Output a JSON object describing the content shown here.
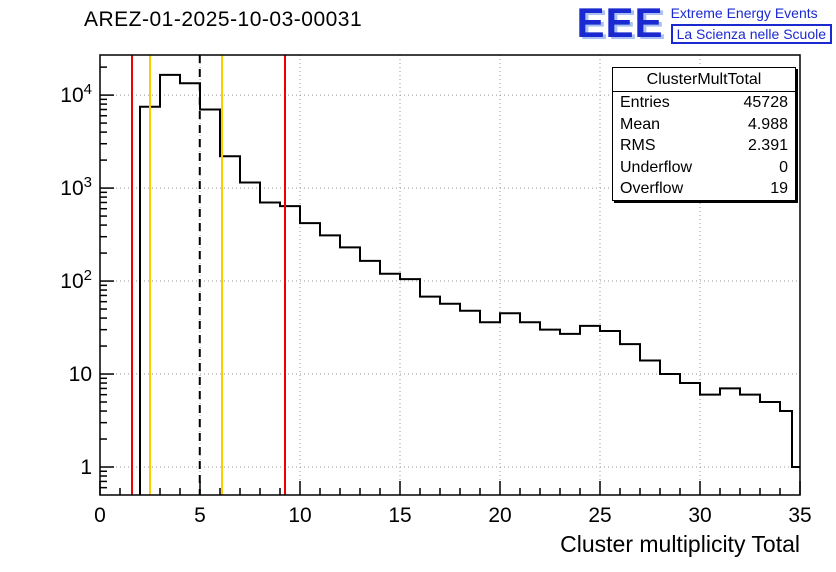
{
  "header": {
    "logo": {
      "acronym": "EEE",
      "line1": "Extreme Energy Events",
      "line2": "La Scienza nelle Scuole",
      "blue": "#1a2ad0"
    }
  },
  "stats": {
    "title": "ClusterMultTotal",
    "rows": [
      {
        "label": "Entries",
        "value": "45728"
      },
      {
        "label": "Mean",
        "value": "4.988"
      },
      {
        "label": "RMS",
        "value": "2.391"
      },
      {
        "label": "Underflow",
        "value": "0"
      },
      {
        "label": "Overflow",
        "value": "19"
      }
    ]
  },
  "chart_data": {
    "type": "bar",
    "subtype": "step-histogram-log-y",
    "title": "AREZ-01-2025-10-03-00031",
    "xlabel": "Cluster multiplicity Total",
    "ylabel": "",
    "x_range": [
      0,
      35
    ],
    "y_scale": "log",
    "y_range": [
      0.5,
      27000
    ],
    "x_major_ticks": [
      0,
      5,
      10,
      15,
      20,
      25,
      30,
      35
    ],
    "x_minor_step": 1,
    "y_major_ticks": [
      1,
      10,
      100,
      1000,
      10000
    ],
    "grid": true,
    "line_color": "#000000",
    "steps": [
      [
        2,
        7500
      ],
      [
        3,
        16500
      ],
      [
        4,
        13400
      ],
      [
        5,
        7000
      ],
      [
        6,
        2200
      ],
      [
        7,
        1150
      ],
      [
        8,
        700
      ],
      [
        9,
        640
      ],
      [
        10,
        420
      ],
      [
        11,
        310
      ],
      [
        12,
        230
      ],
      [
        13,
        165
      ],
      [
        14,
        120
      ],
      [
        15,
        105
      ],
      [
        16,
        68
      ],
      [
        17,
        57
      ],
      [
        18,
        48
      ],
      [
        19,
        36
      ],
      [
        20,
        45
      ],
      [
        21,
        36
      ],
      [
        22,
        30
      ],
      [
        23,
        27
      ],
      [
        24,
        33
      ],
      [
        25,
        29
      ],
      [
        26,
        21
      ],
      [
        27,
        14
      ],
      [
        28,
        10
      ],
      [
        29,
        8
      ],
      [
        30,
        6
      ],
      [
        31,
        7
      ],
      [
        32,
        6
      ],
      [
        33,
        5
      ],
      [
        34,
        4
      ],
      [
        34.6,
        1
      ]
    ],
    "x_end": 35,
    "markers": [
      {
        "x": 1.6,
        "color": "#ee0000",
        "style": "solid",
        "name": "red-lower-threshold"
      },
      {
        "x": 2.5,
        "color": "#ffcc00",
        "style": "solid",
        "name": "yellow-lower-threshold"
      },
      {
        "x": 4.988,
        "color": "#000000",
        "style": "dashed",
        "name": "mean-line"
      },
      {
        "x": 6.1,
        "color": "#ffcc00",
        "style": "solid",
        "name": "yellow-upper-threshold"
      },
      {
        "x": 9.25,
        "color": "#ee0000",
        "style": "solid",
        "name": "red-upper-threshold"
      }
    ]
  }
}
